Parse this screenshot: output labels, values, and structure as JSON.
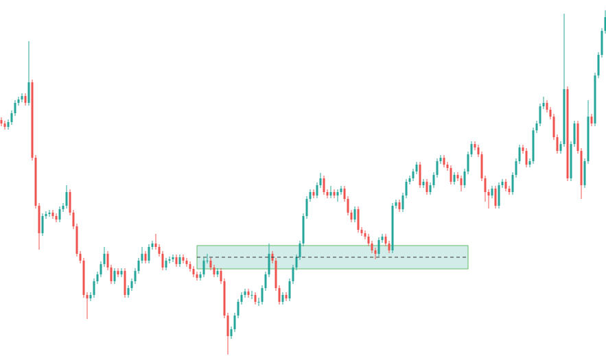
{
  "chart_data": {
    "type": "candlestick",
    "up_color": "#26a69a",
    "down_color": "#ef5350",
    "ylim": [
      0,
      519
    ],
    "zone": {
      "high": 161,
      "low": 127,
      "mid": 144,
      "from": 57,
      "to": 136,
      "fill": "#b2dfdb",
      "border": "#66bb6a",
      "line": "#333333"
    },
    "candles": [
      [
        344,
        348,
        335,
        339
      ],
      [
        339,
        343,
        330,
        334
      ],
      [
        334,
        345,
        330,
        341
      ],
      [
        341,
        358,
        337,
        354
      ],
      [
        354,
        373,
        350,
        369
      ],
      [
        369,
        378,
        365,
        374
      ],
      [
        374,
        383,
        370,
        379
      ],
      [
        379,
        383,
        365,
        369
      ],
      [
        369,
        459,
        365,
        399
      ],
      [
        399,
        403,
        285,
        289
      ],
      [
        289,
        293,
        215,
        219
      ],
      [
        219,
        223,
        155,
        179
      ],
      [
        179,
        208,
        175,
        204
      ],
      [
        204,
        211,
        200,
        207
      ],
      [
        207,
        213,
        203,
        209
      ],
      [
        209,
        213,
        200,
        204
      ],
      [
        204,
        208,
        195,
        199
      ],
      [
        199,
        218,
        195,
        214
      ],
      [
        214,
        223,
        210,
        219
      ],
      [
        219,
        249,
        215,
        239
      ],
      [
        239,
        243,
        205,
        209
      ],
      [
        209,
        213,
        185,
        189
      ],
      [
        189,
        193,
        145,
        149
      ],
      [
        149,
        153,
        135,
        139
      ],
      [
        139,
        143,
        85,
        89
      ],
      [
        89,
        93,
        54,
        84
      ],
      [
        84,
        93,
        80,
        89
      ],
      [
        89,
        113,
        85,
        109
      ],
      [
        109,
        123,
        105,
        119
      ],
      [
        119,
        138,
        115,
        134
      ],
      [
        134,
        159,
        130,
        149
      ],
      [
        149,
        153,
        125,
        129
      ],
      [
        129,
        133,
        105,
        109
      ],
      [
        109,
        128,
        105,
        124
      ],
      [
        124,
        128,
        115,
        119
      ],
      [
        119,
        128,
        115,
        124
      ],
      [
        124,
        128,
        85,
        89
      ],
      [
        89,
        103,
        85,
        99
      ],
      [
        99,
        113,
        95,
        109
      ],
      [
        109,
        128,
        105,
        124
      ],
      [
        124,
        143,
        120,
        139
      ],
      [
        139,
        159,
        135,
        149
      ],
      [
        149,
        153,
        135,
        139
      ],
      [
        139,
        163,
        135,
        159
      ],
      [
        159,
        168,
        155,
        164
      ],
      [
        164,
        178,
        155,
        159
      ],
      [
        159,
        163,
        145,
        149
      ],
      [
        149,
        153,
        125,
        129
      ],
      [
        129,
        143,
        125,
        139
      ],
      [
        139,
        145,
        135,
        141
      ],
      [
        141,
        148,
        137,
        144
      ],
      [
        144,
        148,
        130,
        134
      ],
      [
        134,
        148,
        130,
        144
      ],
      [
        144,
        148,
        135,
        139
      ],
      [
        139,
        143,
        130,
        134
      ],
      [
        134,
        138,
        123,
        127
      ],
      [
        127,
        131,
        115,
        119
      ],
      [
        119,
        123,
        110,
        114
      ],
      [
        114,
        123,
        110,
        119
      ],
      [
        119,
        143,
        115,
        139
      ],
      [
        139,
        149,
        135,
        139
      ],
      [
        139,
        143,
        125,
        129
      ],
      [
        129,
        133,
        115,
        119
      ],
      [
        119,
        128,
        115,
        124
      ],
      [
        124,
        128,
        105,
        109
      ],
      [
        109,
        113,
        55,
        59
      ],
      [
        59,
        63,
        2,
        29
      ],
      [
        29,
        43,
        25,
        39
      ],
      [
        39,
        63,
        35,
        59
      ],
      [
        59,
        83,
        55,
        79
      ],
      [
        79,
        93,
        75,
        89
      ],
      [
        89,
        98,
        85,
        94
      ],
      [
        94,
        98,
        85,
        89
      ],
      [
        89,
        95,
        83,
        89
      ],
      [
        89,
        93,
        75,
        79
      ],
      [
        79,
        85,
        73,
        79
      ],
      [
        79,
        103,
        75,
        99
      ],
      [
        99,
        123,
        95,
        119
      ],
      [
        119,
        164,
        115,
        149
      ],
      [
        149,
        153,
        135,
        139
      ],
      [
        139,
        143,
        95,
        99
      ],
      [
        99,
        103,
        75,
        79
      ],
      [
        79,
        93,
        75,
        89
      ],
      [
        89,
        93,
        80,
        84
      ],
      [
        84,
        113,
        80,
        109
      ],
      [
        109,
        133,
        105,
        129
      ],
      [
        129,
        148,
        125,
        144
      ],
      [
        144,
        168,
        140,
        164
      ],
      [
        164,
        208,
        160,
        204
      ],
      [
        204,
        233,
        200,
        229
      ],
      [
        229,
        243,
        225,
        239
      ],
      [
        239,
        243,
        230,
        234
      ],
      [
        234,
        253,
        230,
        249
      ],
      [
        249,
        267,
        245,
        259
      ],
      [
        259,
        263,
        235,
        239
      ],
      [
        239,
        243,
        230,
        234
      ],
      [
        234,
        248,
        230,
        239
      ],
      [
        239,
        243,
        230,
        234
      ],
      [
        234,
        243,
        225,
        239
      ],
      [
        239,
        248,
        235,
        244
      ],
      [
        244,
        248,
        225,
        229
      ],
      [
        229,
        233,
        205,
        209
      ],
      [
        209,
        213,
        195,
        199
      ],
      [
        199,
        218,
        195,
        214
      ],
      [
        214,
        218,
        180,
        184
      ],
      [
        184,
        188,
        175,
        179
      ],
      [
        179,
        183,
        170,
        174
      ],
      [
        174,
        178,
        160,
        164
      ],
      [
        164,
        168,
        150,
        154
      ],
      [
        154,
        158,
        141,
        149
      ],
      [
        149,
        173,
        145,
        169
      ],
      [
        169,
        178,
        165,
        174
      ],
      [
        174,
        178,
        160,
        164
      ],
      [
        164,
        168,
        150,
        154
      ],
      [
        154,
        223,
        150,
        219
      ],
      [
        219,
        228,
        215,
        224
      ],
      [
        224,
        228,
        210,
        214
      ],
      [
        214,
        238,
        210,
        234
      ],
      [
        234,
        258,
        230,
        254
      ],
      [
        254,
        263,
        250,
        259
      ],
      [
        259,
        273,
        255,
        269
      ],
      [
        269,
        283,
        265,
        279
      ],
      [
        279,
        283,
        245,
        249
      ],
      [
        249,
        258,
        245,
        254
      ],
      [
        254,
        258,
        235,
        239
      ],
      [
        239,
        253,
        235,
        249
      ],
      [
        249,
        268,
        245,
        264
      ],
      [
        264,
        288,
        260,
        284
      ],
      [
        284,
        293,
        280,
        289
      ],
      [
        289,
        293,
        275,
        279
      ],
      [
        279,
        283,
        270,
        274
      ],
      [
        274,
        278,
        250,
        254
      ],
      [
        254,
        268,
        250,
        264
      ],
      [
        264,
        268,
        255,
        259
      ],
      [
        259,
        263,
        240,
        249
      ],
      [
        249,
        273,
        245,
        269
      ],
      [
        269,
        298,
        265,
        294
      ],
      [
        294,
        313,
        290,
        309
      ],
      [
        309,
        313,
        300,
        304
      ],
      [
        304,
        308,
        290,
        294
      ],
      [
        294,
        298,
        255,
        259
      ],
      [
        259,
        263,
        225,
        239
      ],
      [
        239,
        243,
        215,
        234
      ],
      [
        234,
        248,
        230,
        244
      ],
      [
        244,
        248,
        215,
        219
      ],
      [
        219,
        253,
        215,
        249
      ],
      [
        249,
        258,
        245,
        254
      ],
      [
        254,
        258,
        240,
        244
      ],
      [
        244,
        248,
        235,
        239
      ],
      [
        239,
        268,
        235,
        264
      ],
      [
        264,
        288,
        260,
        284
      ],
      [
        284,
        308,
        280,
        304
      ],
      [
        304,
        308,
        295,
        299
      ],
      [
        299,
        303,
        275,
        279
      ],
      [
        279,
        288,
        275,
        284
      ],
      [
        284,
        333,
        280,
        329
      ],
      [
        329,
        343,
        325,
        339
      ],
      [
        339,
        368,
        335,
        364
      ],
      [
        364,
        378,
        360,
        369
      ],
      [
        369,
        373,
        355,
        359
      ],
      [
        359,
        363,
        345,
        349
      ],
      [
        349,
        353,
        315,
        319
      ],
      [
        319,
        323,
        295,
        299
      ],
      [
        299,
        313,
        295,
        309
      ],
      [
        309,
        499,
        305,
        389
      ],
      [
        389,
        393,
        255,
        259
      ],
      [
        259,
        313,
        255,
        309
      ],
      [
        309,
        343,
        305,
        339
      ],
      [
        339,
        343,
        295,
        299
      ],
      [
        299,
        303,
        229,
        249
      ],
      [
        249,
        288,
        245,
        284
      ],
      [
        284,
        373,
        280,
        349
      ],
      [
        349,
        353,
        335,
        339
      ],
      [
        339,
        413,
        335,
        409
      ],
      [
        409,
        443,
        405,
        439
      ],
      [
        439,
        478,
        435,
        474
      ],
      [
        474,
        504,
        470,
        494
      ]
    ]
  }
}
